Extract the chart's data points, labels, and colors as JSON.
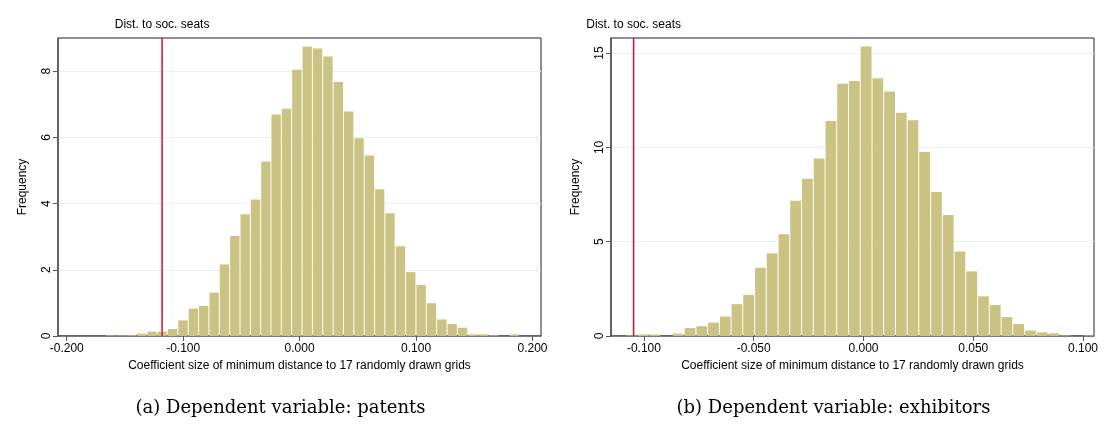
{
  "chart_data": [
    {
      "type": "histogram",
      "xlabel": "Coefficient size of minimum distance to 17 randomly drawn grids",
      "ylabel": "Frequency",
      "color": "#cbc383",
      "bins": [
        -0.1668,
        -0.1579,
        -0.149,
        -0.1401,
        -0.1312,
        -0.1224,
        -0.1135,
        -0.1046,
        -0.0957,
        -0.0868,
        -0.0779,
        -0.069,
        -0.0601,
        -0.0512,
        -0.0423,
        -0.0334,
        -0.0246,
        -0.0157,
        -0.0068,
        0.0021,
        0.011,
        0.0199,
        0.0288,
        0.0377,
        0.0466,
        0.0555,
        0.0644,
        0.0732,
        0.0821,
        0.091,
        0.0999,
        0.1088,
        0.1177,
        0.1266,
        0.1355,
        0.1444,
        0.1533,
        0.1622,
        0.171,
        0.1799,
        0.1888
      ],
      "values": [
        0.02,
        0.02,
        0.02,
        0.07,
        0.13,
        0.13,
        0.21,
        0.47,
        0.83,
        0.91,
        1.31,
        2.16,
        3.02,
        3.68,
        4.12,
        5.27,
        6.69,
        6.86,
        8.04,
        8.74,
        8.68,
        8.44,
        7.67,
        6.78,
        5.97,
        5.45,
        4.43,
        3.71,
        2.71,
        1.93,
        1.54,
        0.99,
        0.5,
        0.36,
        0.25,
        0.05,
        0.05,
        0.02,
        0,
        0.05
      ],
      "xlim": [
        -0.2075,
        0.2073
      ],
      "ylim": [
        0,
        9.0
      ],
      "xticks": [
        {
          "value": -0.2,
          "label": "-0.200"
        },
        {
          "value": -0.1,
          "label": "-0.100"
        },
        {
          "value": 0,
          "label": "0.000"
        },
        {
          "value": 0.1,
          "label": "0.100"
        },
        {
          "value": 0.2,
          "label": "0.200"
        }
      ],
      "yticks": [
        0,
        2,
        4,
        6,
        8
      ],
      "grid": "y",
      "ref_lines": [
        {
          "axis": "x",
          "value": -0.1181,
          "label": "Dist. to soc. seats",
          "color": "#d0103a"
        }
      ],
      "annotations": [
        "(a) Dependent variable: patents"
      ]
    },
    {
      "type": "histogram",
      "xlabel": "Coefficient size of minimum distance to 17 randomly drawn grids",
      "ylabel": "Frequency",
      "color": "#cbc383",
      "bins": [
        -0.1084,
        -0.1031,
        -0.0977,
        -0.0924,
        -0.087,
        -0.0817,
        -0.0763,
        -0.071,
        -0.0656,
        -0.0603,
        -0.055,
        -0.0496,
        -0.0443,
        -0.0389,
        -0.0336,
        -0.0282,
        -0.0229,
        -0.0175,
        -0.0122,
        -0.0068,
        -0.0015,
        0.0039,
        0.0092,
        0.0146,
        0.0199,
        0.0252,
        0.0306,
        0.0359,
        0.0413,
        0.0466,
        0.052,
        0.0573,
        0.0627,
        0.068,
        0.0734,
        0.0787,
        0.0841,
        0.0894,
        0.0948,
        0.1001,
        0.1054
      ],
      "values": [
        0.03,
        0.08,
        0.08,
        0,
        0.12,
        0.42,
        0.52,
        0.71,
        1.03,
        1.69,
        2.18,
        3.62,
        4.38,
        5.4,
        7.17,
        8.34,
        9.41,
        11.4,
        13.37,
        13.52,
        15.35,
        13.67,
        12.96,
        11.84,
        11.44,
        9.76,
        7.63,
        6.41,
        4.48,
        3.43,
        2.1,
        1.64,
        1.0,
        0.63,
        0.29,
        0.19,
        0.14,
        0.03,
        0,
        0.03
      ],
      "xlim": [
        -0.115,
        0.105
      ],
      "ylim": [
        0,
        15.8
      ],
      "xticks": [
        {
          "value": -0.1,
          "label": "-0.100"
        },
        {
          "value": -0.05,
          "label": "-0.050"
        },
        {
          "value": 0,
          "label": "0.000"
        },
        {
          "value": 0.05,
          "label": "0.050"
        },
        {
          "value": 0.1,
          "label": "0.100"
        }
      ],
      "yticks": [
        0,
        5,
        10,
        15
      ],
      "grid": "y",
      "ref_lines": [
        {
          "axis": "x",
          "value": -0.1047,
          "label": "Dist. to soc. seats",
          "color": "#d0103a"
        }
      ],
      "annotations": [
        "(b) Dependent variable: exhibitors"
      ]
    }
  ]
}
